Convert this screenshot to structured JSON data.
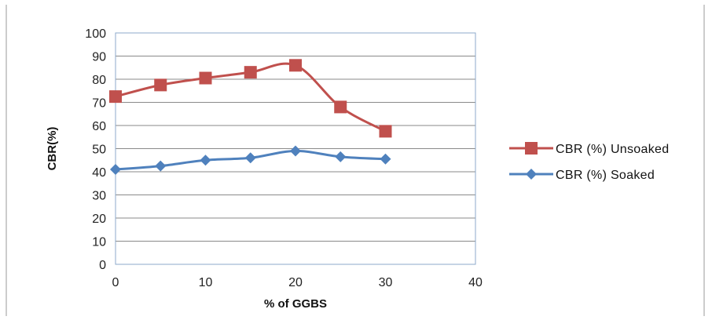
{
  "chart_data": {
    "type": "line",
    "title": "",
    "xlabel": "% of GGBS",
    "ylabel": "CBR(%)",
    "xlim": [
      0,
      40
    ],
    "ylim": [
      0,
      100
    ],
    "x_ticks": [
      0,
      10,
      20,
      30,
      40
    ],
    "y_ticks": [
      0,
      10,
      20,
      30,
      40,
      50,
      60,
      70,
      80,
      90,
      100
    ],
    "grid": "horizontal",
    "legend_position": "right",
    "x": [
      0,
      5,
      10,
      15,
      20,
      25,
      30
    ],
    "series": [
      {
        "name": "CBR (%) Unsoaked",
        "color": "#C0504D",
        "marker": "square",
        "values": [
          72.5,
          77.5,
          80.5,
          83,
          86,
          68,
          57.5
        ]
      },
      {
        "name": "CBR (%) Soaked",
        "color": "#4F81BD",
        "marker": "diamond",
        "values": [
          41,
          42.5,
          45,
          46,
          49,
          46.5,
          45.5
        ]
      }
    ]
  }
}
